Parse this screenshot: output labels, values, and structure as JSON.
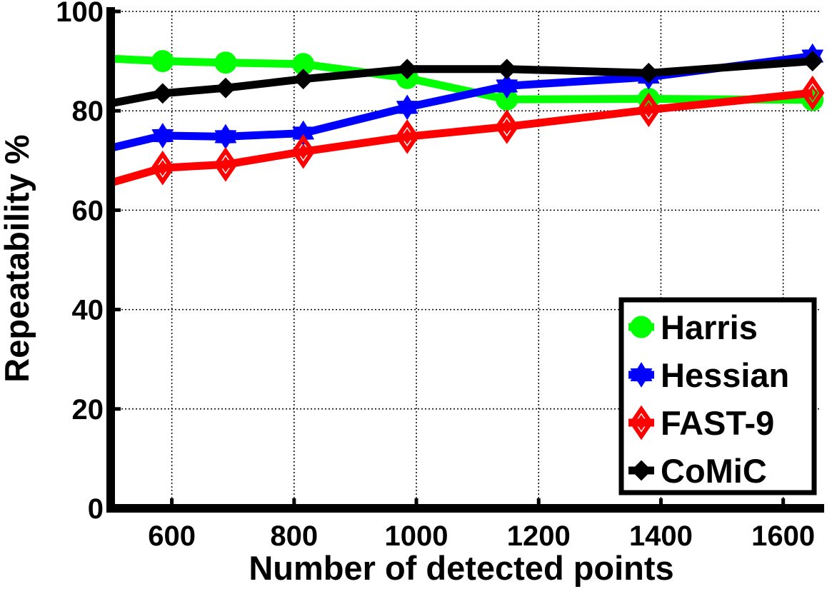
{
  "chart_data": {
    "type": "line",
    "xlabel": "Number of detected points",
    "ylabel": "Repeatability %",
    "xlim": [
      500,
      1660
    ],
    "ylim": [
      0,
      100
    ],
    "xticks": [
      600,
      800,
      1000,
      1200,
      1400,
      1600
    ],
    "yticks": [
      0,
      20,
      40,
      60,
      80,
      100
    ],
    "grid": true,
    "legend_position": "bottom-right",
    "series": [
      {
        "name": "Harris",
        "color": "#00ff00",
        "marker": "circle",
        "x": [
          500,
          585,
          688,
          815,
          985,
          1148,
          1380,
          1648
        ],
        "y": [
          90.5,
          90,
          89.7,
          89.4,
          86.6,
          82.3,
          82.4,
          82.2
        ]
      },
      {
        "name": "Hessian",
        "color": "#0000ff",
        "marker": "star",
        "x": [
          500,
          585,
          688,
          815,
          985,
          1148,
          1380,
          1648
        ],
        "y": [
          72.5,
          75,
          74.8,
          75.5,
          80.7,
          85,
          86.8,
          91
        ]
      },
      {
        "name": "FAST-9",
        "color": "#ff0000",
        "marker": "diamond",
        "x": [
          500,
          585,
          688,
          815,
          985,
          1148,
          1380,
          1648
        ],
        "y": [
          65.5,
          68.5,
          69.2,
          71.8,
          74.8,
          76.8,
          80.2,
          83.6
        ]
      },
      {
        "name": "CoMiC",
        "color": "#000000",
        "marker": "diamond-small",
        "x": [
          500,
          585,
          688,
          815,
          985,
          1148,
          1380,
          1648
        ],
        "y": [
          81.5,
          83.5,
          84.6,
          86.4,
          88.4,
          88.4,
          87.6,
          90
        ]
      }
    ]
  }
}
